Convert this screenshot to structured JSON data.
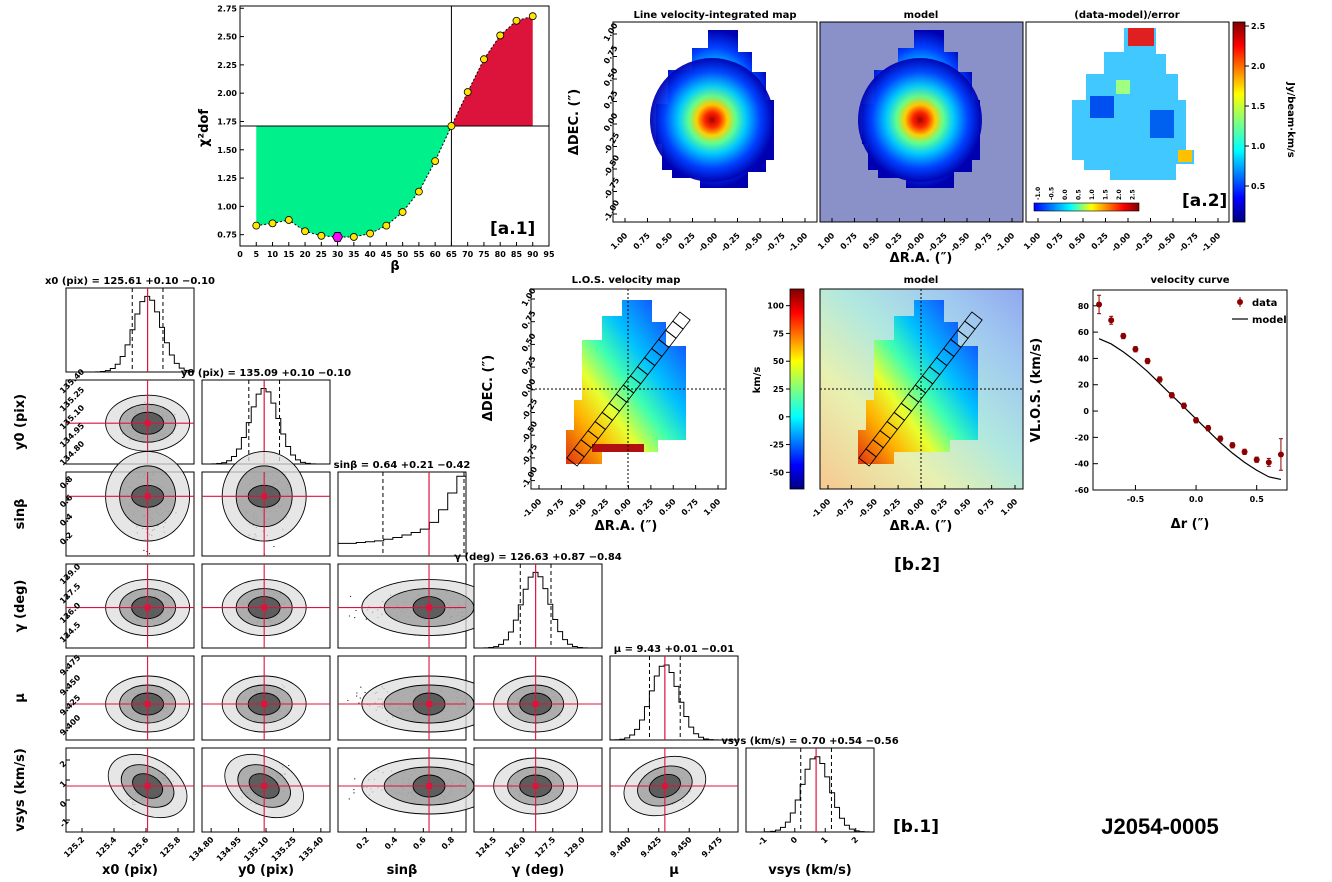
{
  "figure": {
    "source_id": "J2054-0005",
    "tags": {
      "a1": "[a.1]",
      "a2": "[a.2]",
      "b1": "[b.1]",
      "b2": "[b.2]"
    }
  },
  "chart_data": [
    {
      "id": "a1",
      "type": "line",
      "xlabel": "β",
      "ylabel": "χ²dof",
      "xlim": [
        0,
        95
      ],
      "ylim": [
        0.65,
        2.77
      ],
      "xticks": [
        0,
        5,
        10,
        15,
        20,
        25,
        30,
        35,
        40,
        45,
        50,
        55,
        60,
        65,
        70,
        75,
        80,
        85,
        90,
        95
      ],
      "yticks": [
        "0.75",
        "1.00",
        "1.25",
        "1.50",
        "1.75",
        "2.00",
        "2.25",
        "2.50",
        "2.75"
      ],
      "reference": {
        "x": 65,
        "y": 1.71
      },
      "fill_below_color": "#00f08c",
      "fill_above_color": "#dc143c",
      "minimum": {
        "x": 30,
        "y": 0.73,
        "color": "#ff00ff"
      },
      "points": [
        [
          5,
          0.83
        ],
        [
          10,
          0.85
        ],
        [
          15,
          0.88
        ],
        [
          20,
          0.78
        ],
        [
          25,
          0.74
        ],
        [
          30,
          0.73
        ],
        [
          35,
          0.73
        ],
        [
          40,
          0.76
        ],
        [
          45,
          0.83
        ],
        [
          50,
          0.95
        ],
        [
          55,
          1.13
        ],
        [
          60,
          1.4
        ],
        [
          65,
          1.71
        ],
        [
          70,
          2.01
        ],
        [
          75,
          2.3
        ],
        [
          80,
          2.51
        ],
        [
          85,
          2.64
        ],
        [
          90,
          2.68
        ]
      ]
    },
    {
      "id": "a2",
      "type": "heatmap",
      "panels": [
        "Line velocity-integrated map",
        "model",
        "(data-model)/error"
      ],
      "xlabel": "ΔR.A. (″)",
      "ylabel": "ΔDEC. (″)",
      "xticks": [
        "1.00",
        "0.75",
        "0.50",
        "0.25",
        "-0.00",
        "-0.25",
        "-0.50",
        "-0.75",
        "-1.00"
      ],
      "yticks": [
        "1.00",
        "0.75",
        "0.50",
        "0.25",
        "0.00",
        "-0.25",
        "-0.50",
        "-0.75",
        "-1.00"
      ],
      "colorbar": {
        "label": "Jy/beam·km/s",
        "ticks": [
          "0.5",
          "1.0",
          "1.5",
          "2.0",
          "2.5"
        ],
        "range": [
          0.05,
          2.55
        ]
      },
      "inset_colorbar": {
        "ticks": [
          "-1.0",
          "-0.5",
          "0.0",
          "0.5",
          "1.0",
          "1.5",
          "2.0",
          "2.5"
        ]
      }
    },
    {
      "id": "b2",
      "type": "heatmap",
      "panels": [
        "L.O.S. velocity map",
        "model"
      ],
      "xlabel": "ΔR.A. (″)",
      "ylabel": "ΔDEC. (″)",
      "xticks": [
        "-1.00",
        "-0.75",
        "-0.50",
        "-0.25",
        "0.00",
        "0.25",
        "0.50",
        "0.75",
        "1.00"
      ],
      "yticks": [
        "1.00",
        "0.75",
        "0.50",
        "0.25",
        "0.00",
        "-0.25",
        "-0.50",
        "-0.75",
        "-1.00"
      ],
      "colorbar": {
        "label": "km/s",
        "ticks": [
          "100",
          "75",
          "50",
          "25",
          "0",
          "-25",
          "-50"
        ],
        "range": [
          -65,
          115
        ]
      }
    },
    {
      "id": "b2-curve",
      "type": "scatter",
      "title": "velocity curve",
      "xlabel": "Δr (″)",
      "ylabel": "VL.O.S. (km/s)",
      "xlim": [
        -0.85,
        0.75
      ],
      "ylim": [
        -60,
        92
      ],
      "xticks": [
        "-0.5",
        "0.0",
        "0.5"
      ],
      "yticks": [
        "80",
        "60",
        "40",
        "20",
        "0",
        "-20",
        "-40",
        "-60"
      ],
      "legend": [
        "data",
        "model"
      ],
      "legend_position": "top-right",
      "series": [
        {
          "name": "data",
          "x": [
            -0.8,
            -0.7,
            -0.6,
            -0.5,
            -0.4,
            -0.3,
            -0.2,
            -0.1,
            0.0,
            0.1,
            0.2,
            0.3,
            0.4,
            0.5,
            0.6,
            0.7
          ],
          "y": [
            81,
            69,
            57,
            47,
            38,
            24,
            12,
            4,
            -7,
            -13,
            -21,
            -26,
            -31,
            -37,
            -39,
            -33
          ],
          "err": [
            7,
            3,
            2,
            2,
            2,
            2,
            2,
            2,
            2,
            2,
            2,
            2,
            2,
            2,
            3,
            12
          ]
        },
        {
          "name": "model",
          "x": [
            -0.8,
            -0.7,
            -0.6,
            -0.5,
            -0.4,
            -0.3,
            -0.2,
            -0.1,
            0.0,
            0.1,
            0.2,
            0.3,
            0.4,
            0.5,
            0.6,
            0.7
          ],
          "y": [
            55,
            51,
            45,
            38,
            30,
            21,
            12,
            3,
            -6,
            -15,
            -24,
            -32,
            -39,
            -45,
            -50,
            -52
          ]
        }
      ]
    },
    {
      "id": "b1",
      "type": "scatter",
      "params": [
        {
          "label": "x0 (pix)",
          "title": "x0 (pix) = 125.61 +0.10 −0.10",
          "ticks": [
            "125.2",
            "125.4",
            "125.6",
            "125.8"
          ],
          "range": [
            125.1,
            125.9
          ],
          "median": 125.61
        },
        {
          "label": "y0 (pix)",
          "title": "y0 (pix) = 135.09 +0.10 −0.10",
          "ticks": [
            "134.80",
            "134.95",
            "135.10",
            "135.25",
            "135.40"
          ],
          "range": [
            134.75,
            135.45
          ],
          "median": 135.09
        },
        {
          "label": "sinβ",
          "title": "sinβ = 0.64 +0.21 −0.42",
          "ticks": [
            "0.2",
            "0.4",
            "0.6",
            "0.8"
          ],
          "range": [
            0.0,
            0.9
          ],
          "median": 0.64
        },
        {
          "label": "γ (deg)",
          "title": "γ (deg) = 126.63 +0.87 −0.84",
          "ticks": [
            "124.5",
            "126.0",
            "127.5",
            "129.0"
          ],
          "range": [
            123.5,
            130.0
          ],
          "median": 126.63
        },
        {
          "label": "μ",
          "title": "μ = 9.43 +0.01 −0.01",
          "ticks": [
            "9.400",
            "9.425",
            "9.450",
            "9.475"
          ],
          "range": [
            9.385,
            9.49
          ],
          "median": 9.43
        },
        {
          "label": "vsys (km/s)",
          "title": "vsys (km/s) = 0.70 +0.54 −0.56",
          "ticks": [
            "-1",
            "0",
            "1",
            "2"
          ],
          "range": [
            -1.6,
            2.6
          ],
          "median": 0.7
        }
      ]
    }
  ]
}
